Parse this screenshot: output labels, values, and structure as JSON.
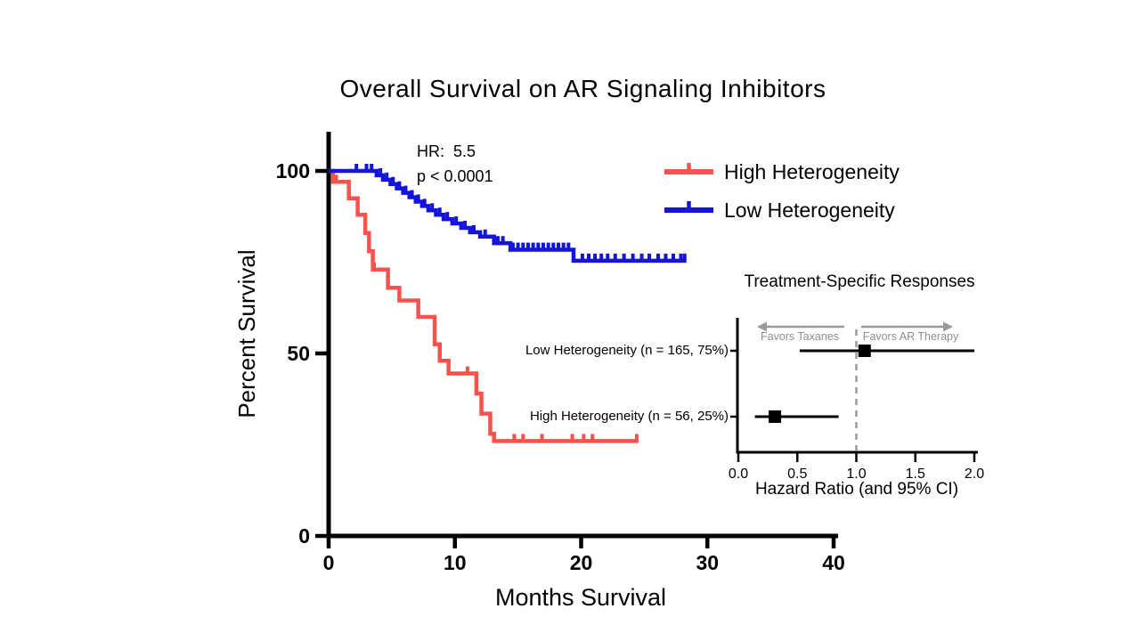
{
  "chart_data": [
    {
      "type": "line",
      "subtype": "kaplan-meier-step",
      "title": "Overall Survival on AR Signaling Inhibitors",
      "xlabel": "Months Survival",
      "ylabel": "Percent Survival",
      "xlim": [
        0,
        40
      ],
      "ylim": [
        0,
        100
      ],
      "x_ticks": [
        0,
        10,
        20,
        30,
        40
      ],
      "y_ticks": [
        0,
        50,
        100
      ],
      "grid": false,
      "legend_position": "upper-right",
      "annotation": {
        "line1": "HR:  5.5",
        "line2": "p < 0.0001"
      },
      "series": [
        {
          "name": "High Heterogeneity",
          "color": "#F8524E",
          "steps": [
            [
              0,
              100
            ],
            [
              0.35,
              97
            ],
            [
              1.6,
              92.5
            ],
            [
              2.3,
              88
            ],
            [
              2.9,
              83
            ],
            [
              3.2,
              78
            ],
            [
              3.5,
              73
            ],
            [
              4.7,
              68
            ],
            [
              5.6,
              64.5
            ],
            [
              7.1,
              60
            ],
            [
              8.4,
              52.5
            ],
            [
              8.8,
              48
            ],
            [
              9.5,
              44.5
            ],
            [
              11.7,
              39
            ],
            [
              12.1,
              33.5
            ],
            [
              12.8,
              28
            ],
            [
              13.1,
              26
            ]
          ],
          "end": 24.5,
          "censor_months": [
            0.6,
            3.6,
            11.0,
            14.7,
            15.4,
            16.9,
            19.3,
            20.2,
            20.9,
            24.4
          ]
        },
        {
          "name": "Low Heterogeneity",
          "color": "#1414DC",
          "steps": [
            [
              0,
              100
            ],
            [
              3.8,
              98.8
            ],
            [
              4.3,
              97.6
            ],
            [
              4.9,
              96.4
            ],
            [
              5.4,
              95.2
            ],
            [
              5.9,
              94
            ],
            [
              6.4,
              92.8
            ],
            [
              6.9,
              91.6
            ],
            [
              7.4,
              90.4
            ],
            [
              7.9,
              89.2
            ],
            [
              8.5,
              88
            ],
            [
              9.1,
              86.8
            ],
            [
              9.8,
              85.6
            ],
            [
              10.5,
              84.4
            ],
            [
              11.2,
              83.2
            ],
            [
              12.0,
              82
            ],
            [
              13.1,
              80.2
            ],
            [
              14.4,
              78.4
            ],
            [
              19.4,
              75.4
            ]
          ],
          "end": 28.3,
          "censor_months": [
            2.2,
            3.0,
            3.4,
            4.1,
            4.6,
            5.1,
            5.6,
            6.1,
            6.6,
            7.1,
            7.6,
            8.2,
            8.8,
            9.4,
            10.1,
            10.8,
            11.5,
            12.4,
            13.4,
            13.8,
            14.6,
            15.0,
            15.4,
            15.8,
            16.2,
            16.6,
            17.0,
            17.4,
            17.8,
            18.2,
            18.6,
            19.0,
            20.1,
            20.6,
            21.1,
            21.6,
            22.1,
            22.7,
            23.4,
            24.1,
            24.8,
            25.4,
            26.1,
            26.7,
            27.3,
            27.9,
            28.2
          ]
        }
      ]
    },
    {
      "type": "scatter",
      "subtype": "forest-plot",
      "title": "Treatment-Specific Responses",
      "xlabel": "Hazard Ratio (and 95% CI)",
      "xlim": [
        0,
        2
      ],
      "x_ticks": [
        "0.0",
        "0.5",
        "1.0",
        "1.5",
        "2.0"
      ],
      "reference_line": 1.0,
      "marker_color": "#000000",
      "annotations": [
        {
          "text": "Favors Taxanes",
          "direction": "left"
        },
        {
          "text": "Favors AR Therapy",
          "direction": "right"
        }
      ],
      "rows": [
        {
          "label": "Low Heterogeneity (n = 165, 75%)",
          "hr": 1.07,
          "ci": [
            0.52,
            2.0
          ]
        },
        {
          "label": "High Heterogeneity (n = 56, 25%)",
          "hr": 0.31,
          "ci": [
            0.14,
            0.85
          ]
        }
      ]
    }
  ]
}
